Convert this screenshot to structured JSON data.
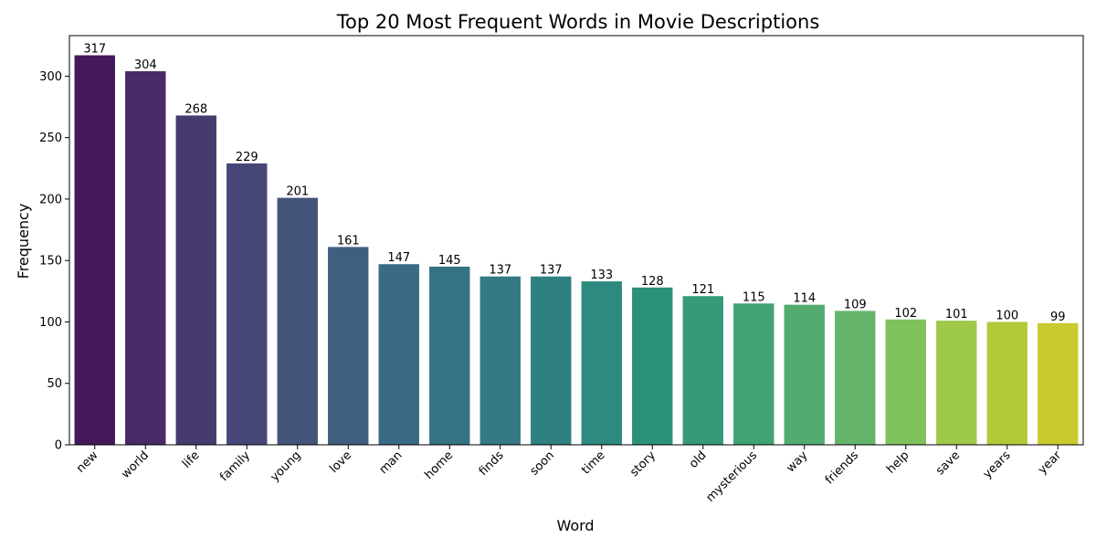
{
  "chart_data": {
    "type": "bar",
    "title": "Top 20 Most Frequent Words in Movie Descriptions",
    "xlabel": "Word",
    "ylabel": "Frequency",
    "categories": [
      "new",
      "world",
      "life",
      "family",
      "young",
      "love",
      "man",
      "home",
      "finds",
      "soon",
      "time",
      "story",
      "old",
      "mysterious",
      "way",
      "friends",
      "help",
      "save",
      "years",
      "year"
    ],
    "values": [
      317,
      304,
      268,
      229,
      201,
      161,
      147,
      145,
      137,
      137,
      133,
      128,
      121,
      115,
      114,
      109,
      102,
      101,
      100,
      99
    ],
    "ylim": [
      0,
      333
    ],
    "yticks": [
      0,
      50,
      100,
      150,
      200,
      250,
      300
    ],
    "grid": false,
    "legend": "none",
    "colors": [
      "#43195a",
      "#482a66",
      "#473a6f",
      "#464777",
      "#435379",
      "#3f5f7f",
      "#3a6a84",
      "#357383",
      "#337a84",
      "#2f8181",
      "#2e897f",
      "#2c9179",
      "#349a78",
      "#3fa373",
      "#52ac70",
      "#64b56a",
      "#7fc15b",
      "#9fc948",
      "#b3c93a",
      "#cbca2d"
    ],
    "tick_x_angle": -45
  }
}
